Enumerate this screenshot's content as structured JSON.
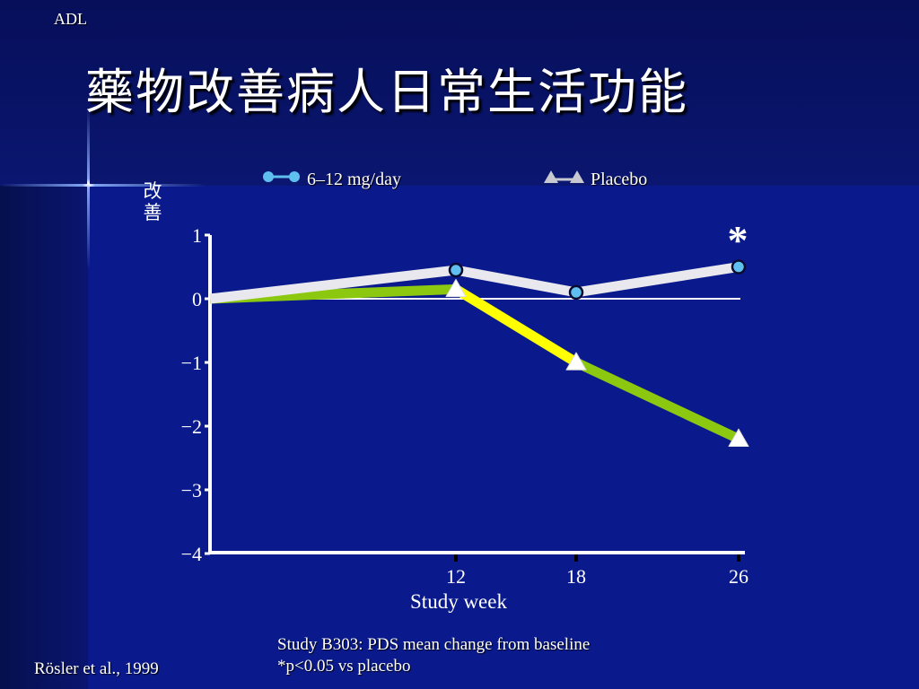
{
  "slide": {
    "tag": "ADL",
    "title": "藥物改善病人日常生活功能",
    "footnote_line1": "Study B303: PDS mean change from baseline",
    "footnote_line2": "*p<0.05 vs placebo",
    "reference": "Rösler et al., 1999"
  },
  "colors": {
    "background": "#0a1a8c",
    "treatment_line": "#e8e8ee",
    "treatment_marker": "#5fc0f0",
    "placebo_line": "#8cc810",
    "placebo_highlight": "#ffff00",
    "placebo_marker": "#ffffff"
  },
  "chart_data": {
    "type": "line",
    "ylabel": "改善",
    "xlabel": "Study week",
    "x": [
      0,
      12,
      18,
      26
    ],
    "x_ticks": [
      "12",
      "18",
      "26"
    ],
    "y_ticks": [
      "1",
      "0",
      "−1",
      "−2",
      "−3",
      "−4"
    ],
    "ylim": [
      -4,
      1
    ],
    "series": [
      {
        "name": "6–12 mg/day",
        "values": [
          0,
          0.45,
          0.1,
          0.5
        ],
        "marker": "circle"
      },
      {
        "name": "Placebo",
        "values": [
          0,
          0.15,
          -1.0,
          -2.2
        ],
        "marker": "triangle"
      }
    ],
    "annotation": "*",
    "legend_position": "top"
  }
}
